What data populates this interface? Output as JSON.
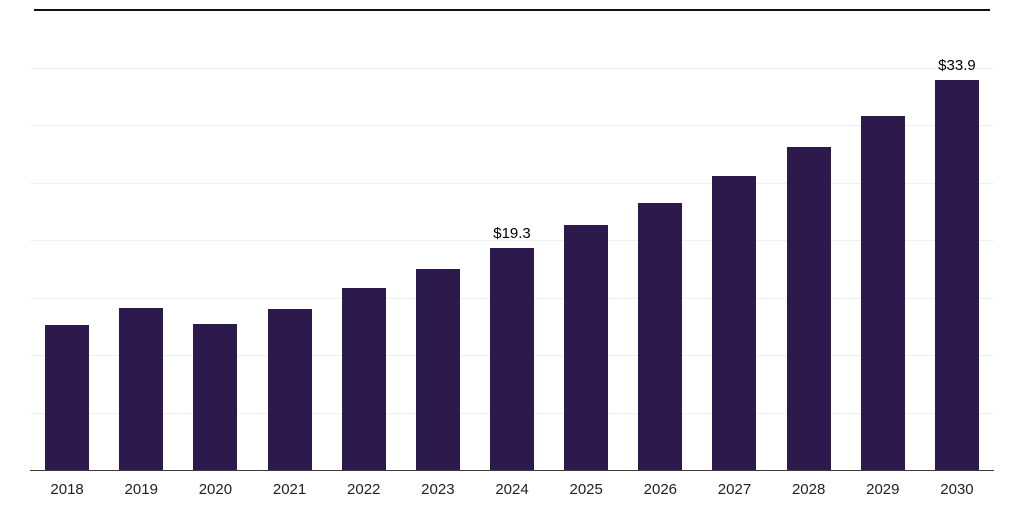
{
  "chart_data": {
    "type": "bar",
    "title": "",
    "xlabel": "",
    "ylabel": "",
    "categories": [
      "2018",
      "2019",
      "2020",
      "2021",
      "2022",
      "2023",
      "2024",
      "2025",
      "2026",
      "2027",
      "2028",
      "2029",
      "2030"
    ],
    "values": [
      12.6,
      14.1,
      12.7,
      14.0,
      15.8,
      17.5,
      19.3,
      21.3,
      23.2,
      25.6,
      28.1,
      30.8,
      33.9
    ],
    "data_labels": {
      "2024": "$19.3",
      "2030": "$33.9"
    },
    "ylim": [
      0,
      40
    ],
    "gridline_step": 5,
    "grid": true,
    "legend_position": "none",
    "bar_color": "#2c1a4d",
    "axis_color": "#3c3c3c",
    "grid_color": "#efefef",
    "label_color": "#000000",
    "tick_color": "#222222"
  }
}
